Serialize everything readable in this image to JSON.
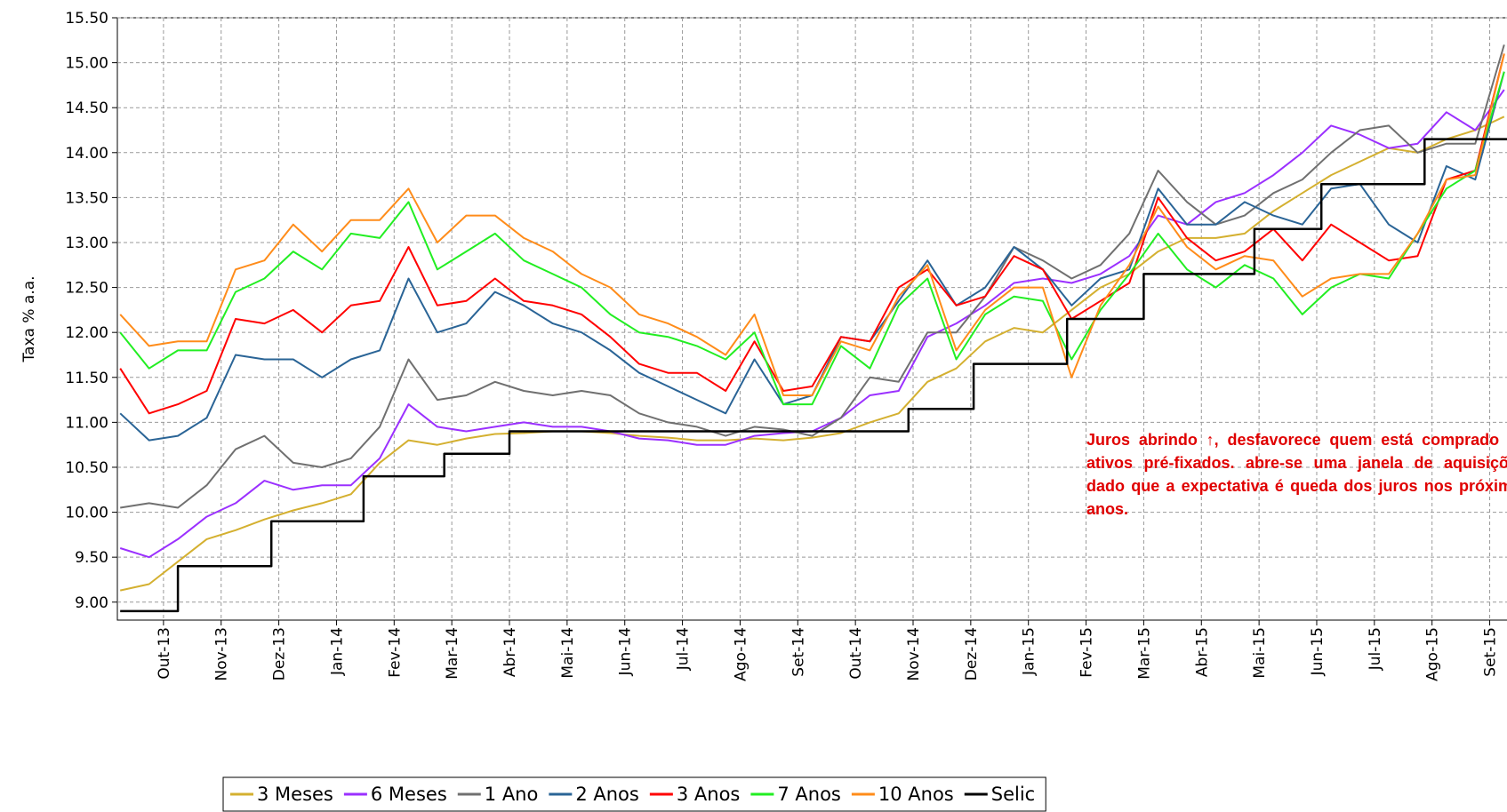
{
  "chart_data": {
    "type": "line",
    "ylabel": "Taxa % a.a.",
    "annotation": "Juros abrindo ↑, desfavorece quem está comprado em ativos pré-fixados. abre-se uma janela de aquisições, dado que a expectativa é queda dos juros nos próximos anos.",
    "grid": true,
    "legend": "bottom",
    "xlim": [
      -0.8,
      23.3
    ],
    "xticks": [
      {
        "value": 0,
        "label": "Out-13"
      },
      {
        "value": 1,
        "label": "Nov-13"
      },
      {
        "value": 2,
        "label": "Dez-13"
      },
      {
        "value": 3,
        "label": "Jan-14"
      },
      {
        "value": 4,
        "label": "Fev-14"
      },
      {
        "value": 5,
        "label": "Mar-14"
      },
      {
        "value": 6,
        "label": "Abr-14"
      },
      {
        "value": 7,
        "label": "Mai-14"
      },
      {
        "value": 8,
        "label": "Jun-14"
      },
      {
        "value": 9,
        "label": "Jul-14"
      },
      {
        "value": 10,
        "label": "Ago-14"
      },
      {
        "value": 11,
        "label": "Set-14"
      },
      {
        "value": 12,
        "label": "Out-14"
      },
      {
        "value": 13,
        "label": "Nov-14"
      },
      {
        "value": 14,
        "label": "Dez-14"
      },
      {
        "value": 15,
        "label": "Jan-15"
      },
      {
        "value": 16,
        "label": "Fev-15"
      },
      {
        "value": 17,
        "label": "Mar-15"
      },
      {
        "value": 18,
        "label": "Abr-15"
      },
      {
        "value": 19,
        "label": "Mai-15"
      },
      {
        "value": 20,
        "label": "Jun-15"
      },
      {
        "value": 21,
        "label": "Jul-15"
      },
      {
        "value": 22,
        "label": "Ago-15"
      },
      {
        "value": 23,
        "label": "Set-15"
      }
    ],
    "ylim": [
      8.8,
      15.5
    ],
    "yticks": [
      {
        "value": 9,
        "label": "9.00"
      },
      {
        "value": 9.5,
        "label": "9.50"
      },
      {
        "value": 10,
        "label": "10.00"
      },
      {
        "value": 10.5,
        "label": "10.50"
      },
      {
        "value": 11,
        "label": "11.00"
      },
      {
        "value": 11.5,
        "label": "11.50"
      },
      {
        "value": 12,
        "label": "12.00"
      },
      {
        "value": 12.5,
        "label": "12.50"
      },
      {
        "value": 13,
        "label": "13.00"
      },
      {
        "value": 13.5,
        "label": "13.50"
      },
      {
        "value": 14,
        "label": "14.00"
      },
      {
        "value": 14.5,
        "label": "14.50"
      },
      {
        "value": 15,
        "label": "15.00"
      },
      {
        "value": 15.5,
        "label": "15.50"
      }
    ],
    "x": [
      -0.75,
      -0.25,
      0.25,
      0.75,
      1.25,
      1.75,
      2.25,
      2.75,
      3.25,
      3.75,
      4.25,
      4.75,
      5.25,
      5.75,
      6.25,
      6.75,
      7.25,
      7.75,
      8.25,
      8.75,
      9.25,
      9.75,
      10.25,
      10.75,
      11.25,
      11.75,
      12.25,
      12.75,
      13.25,
      13.75,
      14.25,
      14.75,
      15.25,
      15.75,
      16.25,
      16.75,
      17.25,
      17.75,
      18.25,
      18.75,
      19.25,
      19.75,
      20.25,
      20.75,
      21.25,
      21.75,
      22.25,
      22.75,
      23.25
    ],
    "series": [
      {
        "name": "3 Meses",
        "color": "#d4b030",
        "values": [
          9.13,
          9.2,
          9.45,
          9.7,
          9.8,
          9.92,
          10.02,
          10.1,
          10.2,
          10.55,
          10.8,
          10.75,
          10.82,
          10.87,
          10.88,
          10.9,
          10.9,
          10.88,
          10.85,
          10.83,
          10.8,
          10.8,
          10.82,
          10.8,
          10.83,
          10.88,
          11.0,
          11.1,
          11.45,
          11.6,
          11.9,
          12.05,
          12.0,
          12.25,
          12.5,
          12.65,
          12.9,
          13.05,
          13.05,
          13.1,
          13.35,
          13.55,
          13.75,
          13.9,
          14.05,
          14.0,
          14.15,
          14.25,
          14.4
        ]
      },
      {
        "name": "6 Meses",
        "color": "#9b30ff",
        "values": [
          9.6,
          9.5,
          9.7,
          9.95,
          10.1,
          10.35,
          10.25,
          10.3,
          10.3,
          10.6,
          11.2,
          10.95,
          10.9,
          10.95,
          11.0,
          10.95,
          10.95,
          10.9,
          10.82,
          10.8,
          10.75,
          10.75,
          10.85,
          10.88,
          10.9,
          11.05,
          11.3,
          11.35,
          11.95,
          12.1,
          12.3,
          12.55,
          12.6,
          12.55,
          12.65,
          12.85,
          13.3,
          13.2,
          13.45,
          13.55,
          13.75,
          14.0,
          14.3,
          14.2,
          14.05,
          14.1,
          14.45,
          14.25,
          14.7
        ]
      },
      {
        "name": "1 Ano",
        "color": "#707070",
        "values": [
          10.05,
          10.1,
          10.05,
          10.3,
          10.7,
          10.85,
          10.55,
          10.5,
          10.6,
          10.95,
          11.7,
          11.25,
          11.3,
          11.45,
          11.35,
          11.3,
          11.35,
          11.3,
          11.1,
          11.0,
          10.95,
          10.85,
          10.95,
          10.92,
          10.85,
          11.05,
          11.5,
          11.45,
          12.0,
          12.0,
          12.4,
          12.95,
          12.8,
          12.6,
          12.75,
          13.1,
          13.8,
          13.45,
          13.2,
          13.3,
          13.55,
          13.7,
          14.0,
          14.25,
          14.3,
          14.0,
          14.1,
          14.1,
          15.2
        ]
      },
      {
        "name": "2 Anos",
        "color": "#2a6496",
        "values": [
          11.1,
          10.8,
          10.85,
          11.05,
          11.75,
          11.7,
          11.7,
          11.5,
          11.7,
          11.8,
          12.6,
          12.0,
          12.1,
          12.45,
          12.3,
          12.1,
          12.0,
          11.8,
          11.55,
          11.4,
          11.25,
          11.1,
          11.7,
          11.2,
          11.3,
          11.95,
          11.9,
          12.35,
          12.8,
          12.3,
          12.5,
          12.95,
          12.7,
          12.3,
          12.6,
          12.7,
          13.6,
          13.2,
          13.2,
          13.45,
          13.3,
          13.2,
          13.6,
          13.65,
          13.2,
          13.0,
          13.85,
          13.7,
          14.9
        ]
      },
      {
        "name": "3 Anos",
        "color": "#ff0000",
        "values": [
          11.6,
          11.1,
          11.2,
          11.35,
          12.15,
          12.1,
          12.25,
          12.0,
          12.3,
          12.35,
          12.95,
          12.3,
          12.35,
          12.6,
          12.35,
          12.3,
          12.2,
          11.95,
          11.65,
          11.55,
          11.55,
          11.35,
          11.9,
          11.35,
          11.4,
          11.95,
          11.9,
          12.5,
          12.7,
          12.3,
          12.4,
          12.85,
          12.7,
          12.15,
          12.35,
          12.55,
          13.5,
          13.05,
          12.8,
          12.9,
          13.15,
          12.8,
          13.2,
          13.0,
          12.8,
          12.85,
          13.7,
          13.8,
          15.1
        ]
      },
      {
        "name": "7 Anos",
        "color": "#22ee22",
        "values": [
          12.0,
          11.6,
          11.8,
          11.8,
          12.45,
          12.6,
          12.9,
          12.7,
          13.1,
          13.05,
          13.45,
          12.7,
          12.9,
          13.1,
          12.8,
          12.65,
          12.5,
          12.2,
          12.0,
          11.95,
          11.85,
          11.7,
          12.0,
          11.2,
          11.2,
          11.85,
          11.6,
          12.3,
          12.6,
          11.7,
          12.2,
          12.4,
          12.35,
          11.7,
          12.25,
          12.65,
          13.1,
          12.7,
          12.5,
          12.75,
          12.6,
          12.2,
          12.5,
          12.65,
          12.6,
          13.1,
          13.6,
          13.8,
          14.9
        ]
      },
      {
        "name": "10 Anos",
        "color": "#ff8c1a",
        "values": [
          12.2,
          11.85,
          11.9,
          11.9,
          12.7,
          12.8,
          13.2,
          12.9,
          13.25,
          13.25,
          13.6,
          13.0,
          13.3,
          13.3,
          13.05,
          12.9,
          12.65,
          12.5,
          12.2,
          12.1,
          11.95,
          11.75,
          12.2,
          11.3,
          11.3,
          11.9,
          11.8,
          12.4,
          12.75,
          11.8,
          12.25,
          12.5,
          12.5,
          11.5,
          12.3,
          12.75,
          13.4,
          12.95,
          12.7,
          12.85,
          12.8,
          12.4,
          12.6,
          12.65,
          12.65,
          13.1,
          13.7,
          13.75,
          15.1
        ]
      },
      {
        "name": "Selic",
        "color": "#000000",
        "x": [
          -0.75,
          0.25,
          0.25,
          1.87,
          1.87,
          3.47,
          3.47,
          4.87,
          4.87,
          6.0,
          6.0,
          12.92,
          12.92,
          14.05,
          14.05,
          15.67,
          15.67,
          17.0,
          17.0,
          18.92,
          18.92,
          20.08,
          20.08,
          21.87,
          21.87,
          23.3
        ],
        "values": [
          8.9,
          8.9,
          9.4,
          9.4,
          9.9,
          9.9,
          10.4,
          10.4,
          10.65,
          10.65,
          10.9,
          10.9,
          11.15,
          11.15,
          11.65,
          11.65,
          12.15,
          12.15,
          12.65,
          12.65,
          13.15,
          13.15,
          13.65,
          13.65,
          14.15,
          14.15
        ]
      }
    ]
  }
}
